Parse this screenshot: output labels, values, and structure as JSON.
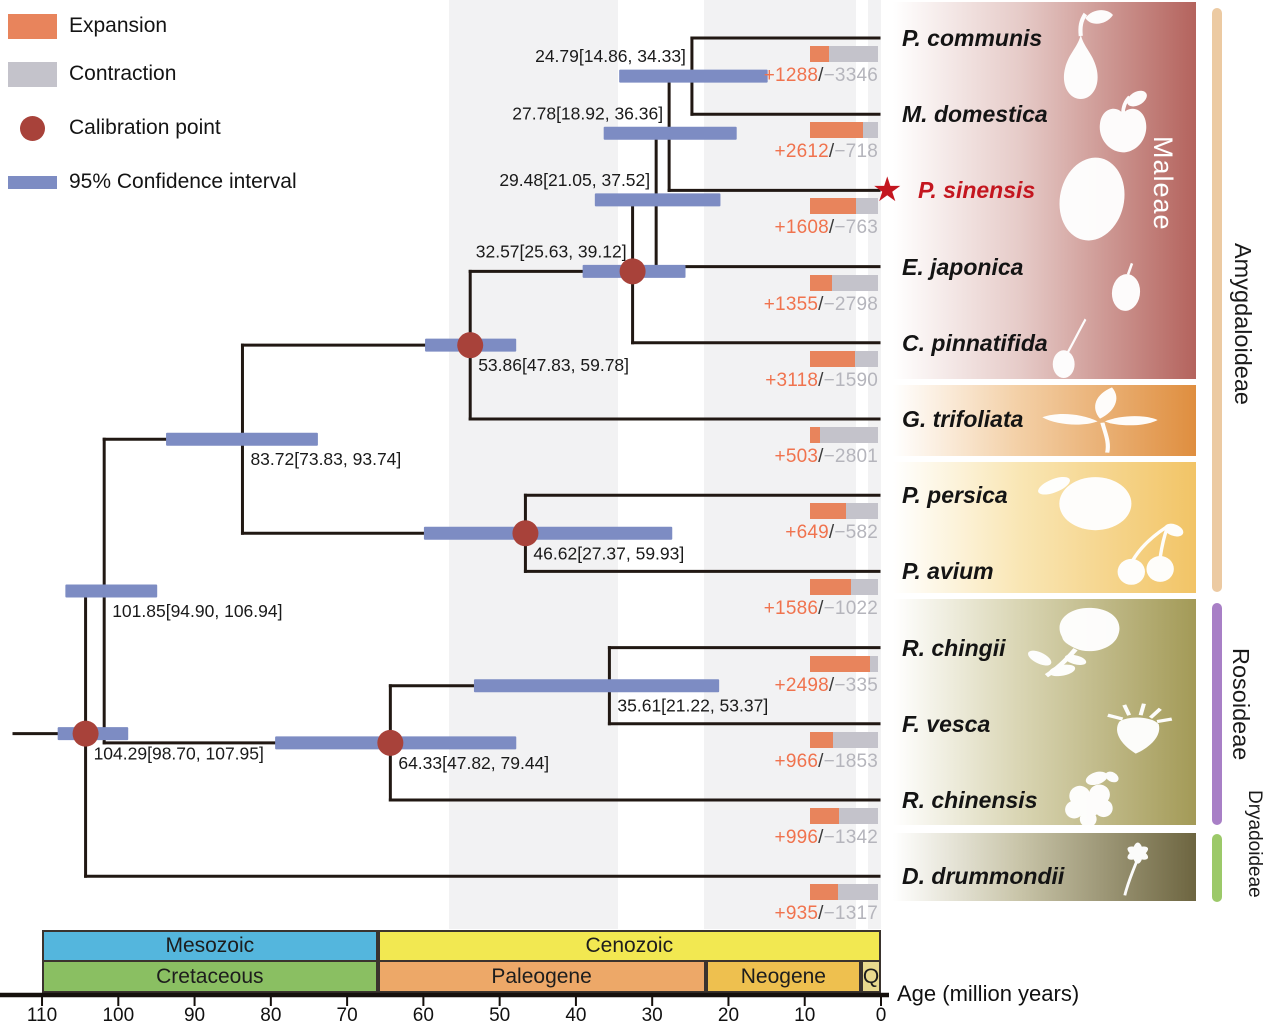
{
  "legend": {
    "items": [
      {
        "label": "Expansion",
        "swatch": "rect",
        "color": "#e8845c"
      },
      {
        "label": "Contraction",
        "swatch": "rect",
        "color": "#c4c3cb"
      },
      {
        "label": "Calibration point",
        "swatch": "circle",
        "color": "#a8423a"
      },
      {
        "label": "95% Confidence interval",
        "swatch": "bar",
        "color": "#7d8cc3"
      }
    ]
  },
  "strings": {
    "slash": "/",
    "star": "★"
  },
  "colors": {
    "expansion": "#e8845c",
    "contraction": "#c4c3cb",
    "calibration": "#a8423a",
    "confidence_interval": "#7d8cc3",
    "branch": "#211813",
    "highlight": "#c4161f",
    "gain_text": "#f0734e",
    "loss_text": "#b5b5bc",
    "slash_text": "#3a3a3a"
  },
  "species": [
    {
      "name": "P. communis",
      "gain": "+1288",
      "loss": "−3346",
      "expansion": 1288,
      "contraction": 3346,
      "highlighted": false
    },
    {
      "name": "M. domestica",
      "gain": "+2612",
      "loss": "−718",
      "expansion": 2612,
      "contraction": 718,
      "highlighted": false
    },
    {
      "name": "P. sinensis",
      "gain": "+1608",
      "loss": "−763",
      "expansion": 1608,
      "contraction": 763,
      "highlighted": true
    },
    {
      "name": "E. japonica",
      "gain": "+1355",
      "loss": "−2798",
      "expansion": 1355,
      "contraction": 2798,
      "highlighted": false
    },
    {
      "name": "C. pinnatifida",
      "gain": "+3118",
      "loss": "−1590",
      "expansion": 3118,
      "contraction": 1590,
      "highlighted": false
    },
    {
      "name": "G. trifoliata",
      "gain": "+503",
      "loss": "−2801",
      "expansion": 503,
      "contraction": 2801,
      "highlighted": false
    },
    {
      "name": "P. persica",
      "gain": "+649",
      "loss": "−582",
      "expansion": 649,
      "contraction": 582,
      "highlighted": false
    },
    {
      "name": "P. avium",
      "gain": "+1586",
      "loss": "−1022",
      "expansion": 1586,
      "contraction": 1022,
      "highlighted": false
    },
    {
      "name": "R. chingii",
      "gain": "+2498",
      "loss": "−335",
      "expansion": 2498,
      "contraction": 335,
      "highlighted": false
    },
    {
      "name": "F. vesca",
      "gain": "+966",
      "loss": "−1853",
      "expansion": 966,
      "contraction": 1853,
      "highlighted": false
    },
    {
      "name": "R. chinensis",
      "gain": "+996",
      "loss": "−1342",
      "expansion": 996,
      "contraction": 1342,
      "highlighted": false
    },
    {
      "name": "D. drummondii",
      "gain": "+935",
      "loss": "−1317",
      "expansion": 935,
      "contraction": 1317,
      "highlighted": false
    }
  ],
  "tree": {
    "root": {
      "age": 104.29,
      "ci": [
        98.7,
        107.95
      ],
      "label": "104.29[98.70, 107.95]",
      "calibration": true,
      "label_side": "below",
      "children": [
        {
          "age": 101.85,
          "ci": [
            94.9,
            106.94
          ],
          "label": "101.85[94.90, 106.94]",
          "calibration": false,
          "label_side": "below",
          "children": [
            {
              "age": 83.72,
              "ci": [
                73.83,
                93.74
              ],
              "label": "83.72[73.83, 93.74]",
              "calibration": false,
              "label_side": "below",
              "children": [
                {
                  "age": 53.86,
                  "ci": [
                    47.83,
                    59.78
                  ],
                  "label": "53.86[47.83, 59.78]",
                  "calibration": true,
                  "label_side": "below",
                  "children": [
                    {
                      "age": 32.57,
                      "ci": [
                        25.63,
                        39.12
                      ],
                      "label": "32.57[25.63, 39.12]",
                      "calibration": true,
                      "label_side": "above",
                      "children": [
                        {
                          "age": 29.48,
                          "ci": [
                            21.05,
                            37.52
                          ],
                          "label": "29.48[21.05, 37.52]",
                          "calibration": false,
                          "label_side": "above",
                          "children": [
                            {
                              "age": 27.78,
                              "ci": [
                                18.92,
                                36.36
                              ],
                              "label": "27.78[18.92, 36.36]",
                              "calibration": false,
                              "label_side": "above",
                              "children": [
                                {
                                  "age": 24.79,
                                  "ci": [
                                    14.86,
                                    34.33
                                  ],
                                  "label": "24.79[14.86, 34.33]",
                                  "calibration": false,
                                  "label_side": "above",
                                  "children": [
                                    {
                                      "species": "P. communis"
                                    },
                                    {
                                      "species": "M. domestica"
                                    }
                                  ]
                                },
                                {
                                  "species": "P. sinensis"
                                }
                              ]
                            },
                            {
                              "species": "E. japonica"
                            }
                          ]
                        },
                        {
                          "species": "C. pinnatifida"
                        }
                      ]
                    },
                    {
                      "species": "G. trifoliata"
                    }
                  ]
                },
                {
                  "age": 46.62,
                  "ci": [
                    27.37,
                    59.93
                  ],
                  "label": "46.62[27.37, 59.93]",
                  "calibration": true,
                  "label_side": "below",
                  "children": [
                    {
                      "species": "P. persica"
                    },
                    {
                      "species": "P. avium"
                    }
                  ]
                }
              ]
            },
            {
              "age": 64.33,
              "ci": [
                47.82,
                79.44
              ],
              "label": "64.33[47.82, 79.44]",
              "calibration": true,
              "label_side": "below",
              "children": [
                {
                  "age": 35.61,
                  "ci": [
                    21.22,
                    53.37
                  ],
                  "label": "35.61[21.22, 53.37]",
                  "calibration": false,
                  "label_side": "below",
                  "children": [
                    {
                      "species": "R. chingii"
                    },
                    {
                      "species": "F. vesca"
                    }
                  ]
                },
                {
                  "species": "R. chinensis"
                }
              ]
            }
          ]
        },
        {
          "species": "D. drummondii"
        }
      ]
    }
  },
  "timescale": {
    "eras": [
      {
        "name": "Mesozoic",
        "from": 110,
        "to": 66,
        "color": "#54b6dd"
      },
      {
        "name": "Cenozoic",
        "from": 66,
        "to": 0,
        "color": "#f2e851"
      }
    ],
    "periods": [
      {
        "name": "Cretaceous",
        "from": 110,
        "to": 66,
        "color": "#8abf62"
      },
      {
        "name": "Paleogene",
        "from": 66,
        "to": 23,
        "color": "#eda868"
      },
      {
        "name": "Neogene",
        "from": 23,
        "to": 2.6,
        "color": "#eec04f"
      },
      {
        "name": "Q",
        "from": 2.6,
        "to": 0,
        "color": "#e9d98e"
      }
    ],
    "axis": {
      "ticks": [
        110,
        100,
        90,
        80,
        70,
        60,
        50,
        40,
        30,
        20,
        10,
        0
      ],
      "title": "Age (million years)"
    }
  },
  "clades": [
    {
      "label": "Amygdaloideae",
      "bar_color": "#eccaa2"
    },
    {
      "label": "Rosoideae",
      "bar_color": "#a87fc6"
    },
    {
      "label": "Dryadoideae",
      "bar_color": "#9cc969"
    }
  ],
  "panels": [
    {
      "label": "Maleae",
      "gradient_to": "#b4635d",
      "icons": [
        "pear-icon",
        "apple-icon",
        "asian-pear-icon",
        "loquat-icon",
        "hawthorn-icon"
      ]
    },
    {
      "label": "",
      "gradient_to": "#df8e3f",
      "icons": [
        "trifoliate-leaf-icon"
      ]
    },
    {
      "label": "",
      "gradient_to": "#f2c466",
      "icons": [
        "peach-icon",
        "cherries-icon"
      ]
    },
    {
      "label": "",
      "gradient_to": "#a39a57",
      "icons": [
        "rose-icon",
        "strawberry-icon",
        "raspberry-icon"
      ]
    },
    {
      "label": "",
      "gradient_to": "#6d6540",
      "icons": [
        "dryas-flower-icon"
      ]
    }
  ]
}
